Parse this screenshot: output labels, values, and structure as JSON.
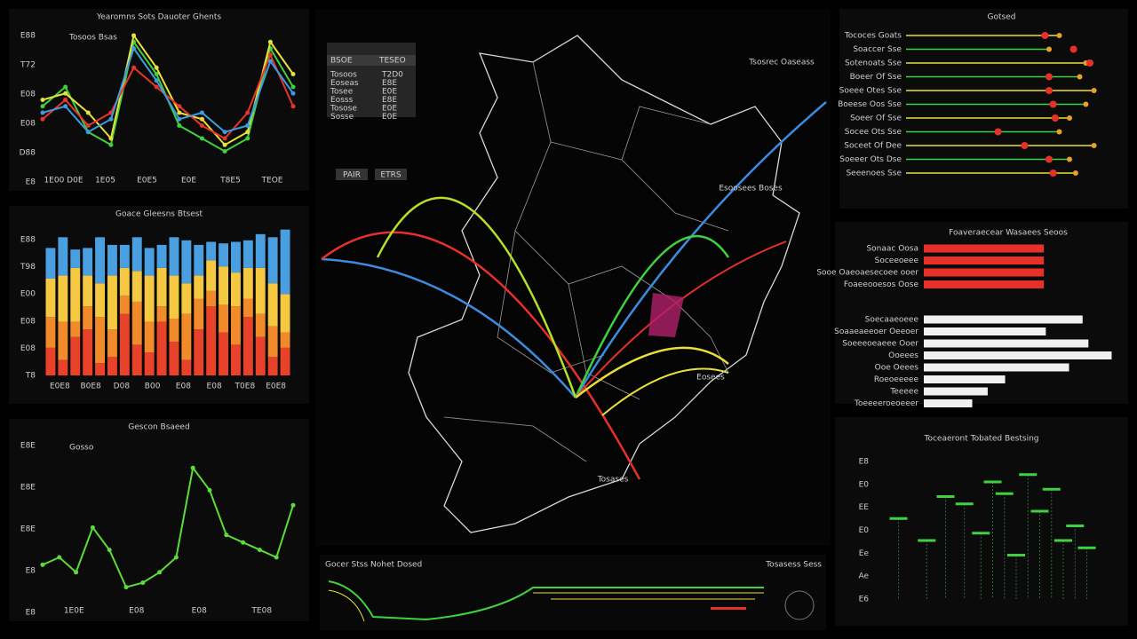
{
  "panels": [
    {
      "type": "line",
      "title": "Yearomns Sots Dauoter Ghents",
      "legend": "Tosoos Bsas",
      "y_labels": [
        "E88",
        "T72",
        "E08",
        "E08",
        "D88",
        "E8"
      ],
      "x_labels": [
        "1E00 D0E",
        "1E05",
        "E0E5",
        "E0E",
        "T8E5",
        "TEOE"
      ],
      "ylim": [
        0,
        100
      ],
      "series": [
        {
          "color": "#3fd13f",
          "values": [
            45,
            60,
            25,
            15,
            95,
            70,
            30,
            20,
            10,
            20,
            90,
            60
          ]
        },
        {
          "color": "#e8e03a",
          "values": [
            50,
            55,
            40,
            20,
            100,
            75,
            40,
            35,
            15,
            25,
            95,
            70
          ]
        },
        {
          "color": "#e8352a",
          "values": [
            35,
            50,
            30,
            40,
            75,
            60,
            45,
            30,
            20,
            40,
            85,
            45
          ]
        },
        {
          "color": "#3d9be0",
          "values": [
            40,
            45,
            25,
            35,
            90,
            65,
            35,
            40,
            25,
            30,
            80,
            55
          ]
        }
      ]
    },
    {
      "type": "stacked",
      "title": "Goace Gleesns Btsest",
      "y_labels": [
        "E88",
        "T98",
        "E00",
        "E08",
        "E08",
        "T8"
      ],
      "x_labels": [
        "E0E8",
        "B0E8",
        "D08",
        "B00",
        "E08",
        "E08",
        "T0E8",
        "E0E8"
      ],
      "ylim": [
        0,
        100
      ],
      "series": [
        {
          "color": "#e8422a",
          "values": [
            18,
            10,
            25,
            30,
            8,
            12,
            40,
            20,
            15,
            35,
            22,
            10,
            30,
            45,
            28,
            20,
            38,
            25,
            12,
            18
          ]
        },
        {
          "color": "#f08a2a",
          "values": [
            20,
            25,
            10,
            15,
            30,
            18,
            12,
            28,
            20,
            10,
            15,
            30,
            20,
            10,
            18,
            25,
            12,
            15,
            20,
            10
          ]
        },
        {
          "color": "#f5c842",
          "values": [
            25,
            30,
            35,
            20,
            22,
            35,
            18,
            20,
            30,
            25,
            28,
            20,
            15,
            20,
            25,
            22,
            20,
            30,
            28,
            25
          ]
        },
        {
          "color": "#4a9fe0",
          "values": [
            20,
            25,
            12,
            18,
            30,
            20,
            15,
            22,
            18,
            15,
            25,
            28,
            20,
            12,
            15,
            20,
            18,
            22,
            30,
            42
          ]
        }
      ]
    },
    {
      "type": "line",
      "title": "Gescon  Bsaeed",
      "legend": "Gosso",
      "y_labels": [
        "E8E",
        "E8E",
        "E8E",
        "E8",
        "E8"
      ],
      "x_labels": [
        "1E0E",
        "E08",
        "E08",
        "TE08"
      ],
      "ylim": [
        0,
        100
      ],
      "series": [
        {
          "color": "#5bdc3a",
          "values": [
            20,
            25,
            15,
            45,
            30,
            5,
            8,
            15,
            25,
            85,
            70,
            40,
            35,
            30,
            25,
            60
          ]
        }
      ]
    },
    {
      "type": "lollipop",
      "title": "Gotsed",
      "labels": [
        "Tococes Goats",
        "Soaccer Sse",
        "Sotenoats Sse",
        "Boeer Of Sse",
        "Soeee Otes Sse",
        "Boeese Oos Sse",
        "Soeer Of Sse",
        "Socee Ots Sse",
        "Soceet Of Dee",
        "Soeeer Ots Dse",
        "Seeenoes Sse"
      ],
      "xlim": [
        0,
        100
      ],
      "values": [
        75,
        70,
        88,
        85,
        92,
        88,
        80,
        75,
        92,
        80,
        83
      ],
      "dots": [
        68,
        82,
        90,
        70,
        70,
        72,
        73,
        45,
        58,
        70,
        72
      ]
    },
    {
      "type": "hbar",
      "title": "Foaveraecear Wasaees Seoos",
      "xlim": [
        0,
        100
      ],
      "groups": [
        {
          "color": "#e8302a",
          "labels": [
            "Sonaac Oosa",
            "Soceeoeee",
            "Sooe Oaeoaesecoee ooer",
            "Foaeeooesos Oose"
          ],
          "values": [
            62,
            62,
            62,
            62
          ]
        },
        {
          "color": "#f0f0f0",
          "labels": [
            "Soecaaeoeee",
            "Soaaeaeeoer Oeeoer",
            "Soeeeoeaeee Ooer",
            "Ooeees",
            "Ooe Oeees",
            "Roeoeeeee",
            "Teeeee",
            "Toeeeeroeoeeer"
          ],
          "values": [
            82,
            63,
            85,
            97,
            75,
            42,
            33,
            25
          ]
        }
      ]
    },
    {
      "type": "scatter",
      "title": "Toceaeront  Tobated Bestsing",
      "y_labels": [
        "E8",
        "E0",
        "EE",
        "E0",
        "Ee",
        "Ae",
        "E6"
      ],
      "xlim": [
        0,
        100
      ],
      "ylim": [
        0,
        100
      ],
      "x": [
        10,
        22,
        30,
        38,
        45,
        50,
        55,
        60,
        65,
        70,
        75,
        80,
        85,
        90
      ],
      "y": [
        55,
        40,
        70,
        65,
        45,
        80,
        72,
        30,
        85,
        60,
        75,
        40,
        50,
        35
      ]
    }
  ],
  "map": {
    "labels": [
      "Tsosrec Oaseass",
      "Esoosees Boses",
      "Eosees",
      "Tosases"
    ],
    "table": {
      "header": [
        "BSOE",
        "TESEO"
      ],
      "rows": [
        [
          "Tosoos",
          "T2D0"
        ],
        [
          "Eoseas",
          "E8E"
        ],
        [
          "Tosee",
          "E0E"
        ],
        [
          "Eosss",
          "E8E"
        ],
        [
          "Tosose",
          "E0E"
        ],
        [
          "Sosse",
          "E0E"
        ]
      ],
      "buttons": [
        "PAIR",
        "ETRS"
      ]
    }
  },
  "timeline": {
    "title": "Gocer Stss Nohet Dosed",
    "note": "Tosasess Sess"
  }
}
